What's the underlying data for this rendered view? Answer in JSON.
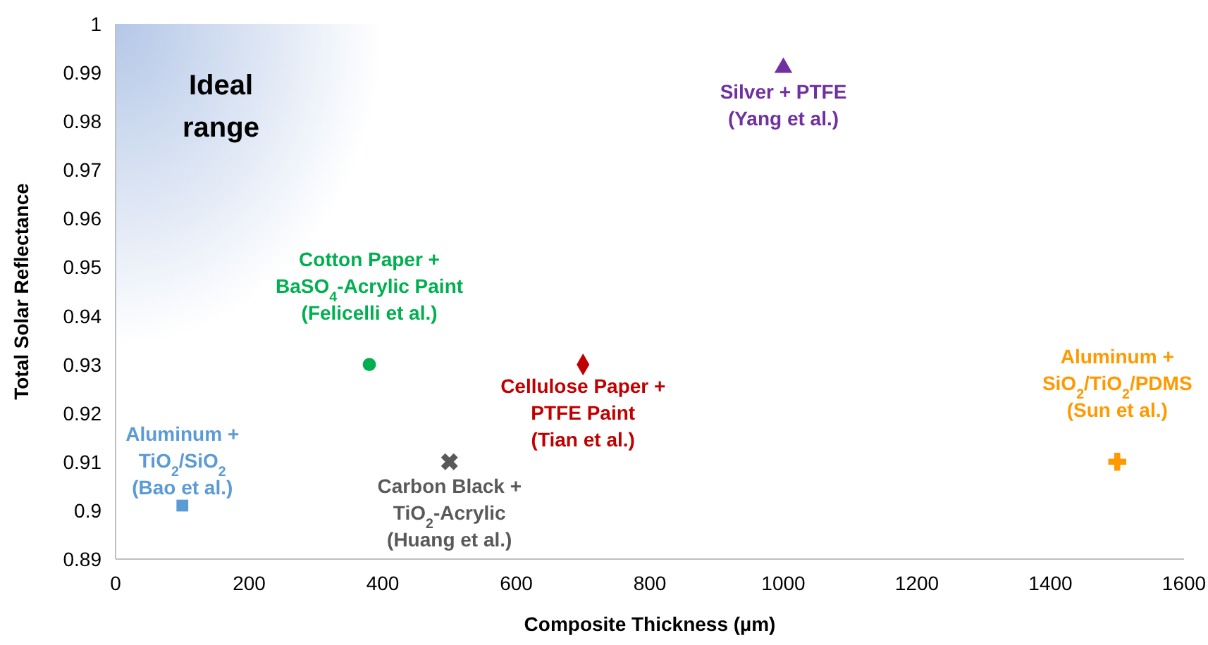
{
  "chart_data": {
    "type": "scatter",
    "xlabel": "Composite Thickness (µm)",
    "ylabel": "Total Solar Reflectance",
    "xlim": [
      0,
      1600
    ],
    "xticks": [
      0,
      200,
      400,
      600,
      800,
      1000,
      1200,
      1400,
      1600
    ],
    "ylim": [
      0.89,
      1
    ],
    "yticks": [
      0.89,
      0.9,
      0.91,
      0.92,
      0.93,
      0.94,
      0.95,
      0.96,
      0.97,
      0.98,
      0.99,
      1
    ],
    "grid": false,
    "bands": [
      {
        "axis": "x",
        "from": 0,
        "to": 400,
        "label": "Ideal range",
        "color": "#b4c7e7"
      }
    ],
    "series": [
      {
        "name": "Aluminum +\nTiO$_{2}$/SiO$_{2}$\n(Bao et al.)",
        "color": "#5b9bd5",
        "marker": "square",
        "x": [
          100
        ],
        "values": [
          0.901
        ]
      },
      {
        "name": "Cotton Paper +\nBaSO$_{4}$-Acrylic Paint\n(Felicelli et al.)",
        "color": "#00b050",
        "marker": "circle",
        "x": [
          380
        ],
        "values": [
          0.93
        ]
      },
      {
        "name": "Carbon Black +\nTiO$_{2}$-Acrylic\n(Huang et al.)",
        "color": "#595959",
        "marker": "cross",
        "x": [
          500
        ],
        "values": [
          0.91
        ]
      },
      {
        "name": "Cellulose Paper +\nPTFE Paint\n(Tian et al.)",
        "color": "#c00000",
        "marker": "diamond",
        "x": [
          700
        ],
        "values": [
          0.93
        ]
      },
      {
        "name": "Silver + PTFE\n(Yang et al.)",
        "color": "#7030a0",
        "marker": "triangle",
        "x": [
          1000
        ],
        "values": [
          0.991
        ]
      },
      {
        "name": "Aluminum +\nSiO$_{2}$/TiO$_{2}$/PDMS\n(Sun et al.)",
        "color": "#ff9900",
        "marker": "cross",
        "x": [
          1500
        ],
        "values": [
          0.91
        ]
      }
    ]
  }
}
